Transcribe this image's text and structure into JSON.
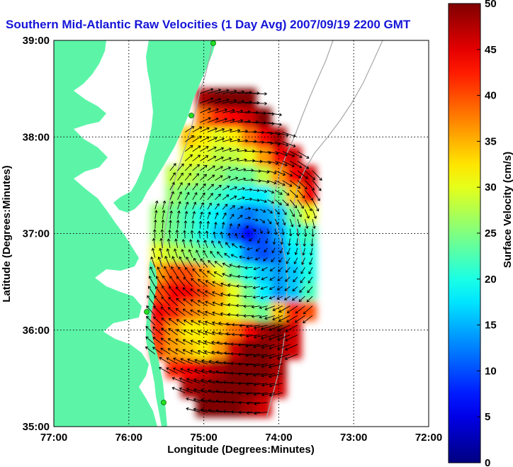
{
  "chart_data": {
    "type": "heatmap",
    "title": "Southern Mid-Atlantic Raw Velocities (1 Day Avg) 2007/09/19 2200 GMT",
    "xlabel": "Longitude (Degrees:Minutes)",
    "ylabel": "Latitude (Degrees:Minutes)",
    "xlim": [
      -77,
      -72
    ],
    "ylim": [
      35,
      39
    ],
    "x_ticks": [
      {
        "value": -77,
        "label": "77:00"
      },
      {
        "value": -76,
        "label": "76:00"
      },
      {
        "value": -75,
        "label": "75:00"
      },
      {
        "value": -74,
        "label": "74:00"
      },
      {
        "value": -73,
        "label": "73:00"
      },
      {
        "value": -72,
        "label": "72:00"
      }
    ],
    "y_ticks": [
      {
        "value": 35,
        "label": "35:00"
      },
      {
        "value": 36,
        "label": "36:00"
      },
      {
        "value": 37,
        "label": "37:00"
      },
      {
        "value": 38,
        "label": "38:00"
      },
      {
        "value": 39,
        "label": "39:00"
      }
    ],
    "grid": true,
    "colorbar": {
      "label": "Surface Velocity (cm/s)",
      "min": 0,
      "max": 50,
      "ticks": [
        {
          "value": 0,
          "label": "0"
        },
        {
          "value": 5,
          "label": "5"
        },
        {
          "value": 10,
          "label": "10"
        },
        {
          "value": 15,
          "label": "15"
        },
        {
          "value": 20,
          "label": "20"
        },
        {
          "value": 25,
          "label": "25"
        },
        {
          "value": 30,
          "label": "30"
        },
        {
          "value": 35,
          "label": "35"
        },
        {
          "value": 40,
          "label": "40"
        },
        {
          "value": 45,
          "label": "45"
        },
        {
          "value": 50,
          "label": "50"
        }
      ]
    },
    "field_grid": {
      "lon": [
        -75.6,
        -75.4,
        -75.2,
        -75.0,
        -74.8,
        -74.6,
        -74.4,
        -74.2,
        -74.0,
        -73.8,
        -73.6
      ],
      "lat": [
        35.2,
        35.4,
        35.6,
        35.8,
        36.0,
        36.2,
        36.4,
        36.6,
        36.8,
        37.0,
        37.2,
        37.4,
        37.6,
        37.8,
        38.0,
        38.2,
        38.4
      ],
      "speed_cm_s": [
        [
          null,
          null,
          null,
          50,
          50,
          50,
          48,
          46,
          null,
          null,
          null
        ],
        [
          null,
          null,
          48,
          49,
          50,
          50,
          50,
          48,
          46,
          null,
          null
        ],
        [
          null,
          42,
          44,
          46,
          48,
          50,
          50,
          50,
          48,
          null,
          null
        ],
        [
          40,
          36,
          34,
          32,
          36,
          46,
          50,
          50,
          48,
          46,
          null
        ],
        [
          42,
          36,
          32,
          32,
          34,
          38,
          44,
          48,
          50,
          46,
          null
        ],
        [
          44,
          42,
          38,
          36,
          34,
          30,
          26,
          24,
          34,
          42,
          40
        ],
        [
          40,
          44,
          44,
          40,
          36,
          30,
          24,
          18,
          14,
          16,
          22
        ],
        [
          36,
          40,
          40,
          36,
          30,
          24,
          20,
          16,
          14,
          16,
          20
        ],
        [
          30,
          28,
          26,
          24,
          22,
          18,
          12,
          10,
          12,
          18,
          20
        ],
        [
          26,
          24,
          22,
          20,
          16,
          10,
          6,
          10,
          14,
          20,
          22
        ],
        [
          26,
          24,
          22,
          20,
          18,
          14,
          12,
          14,
          16,
          24,
          30
        ],
        [
          null,
          26,
          24,
          24,
          22,
          20,
          18,
          18,
          24,
          34,
          44
        ],
        [
          null,
          28,
          28,
          26,
          26,
          24,
          24,
          28,
          36,
          44,
          46
        ],
        [
          null,
          null,
          30,
          30,
          28,
          28,
          30,
          36,
          44,
          46,
          null
        ],
        [
          null,
          null,
          34,
          32,
          30,
          32,
          38,
          44,
          48,
          null,
          null
        ],
        [
          null,
          null,
          null,
          38,
          42,
          44,
          46,
          50,
          null,
          null,
          null
        ],
        [
          null,
          null,
          null,
          48,
          50,
          50,
          50,
          null,
          null,
          null,
          null
        ]
      ]
    }
  },
  "colors": {
    "land": "#5cf5a8",
    "coast": "#a8a8a8",
    "title": "#1515d8",
    "station": "#22e022"
  }
}
